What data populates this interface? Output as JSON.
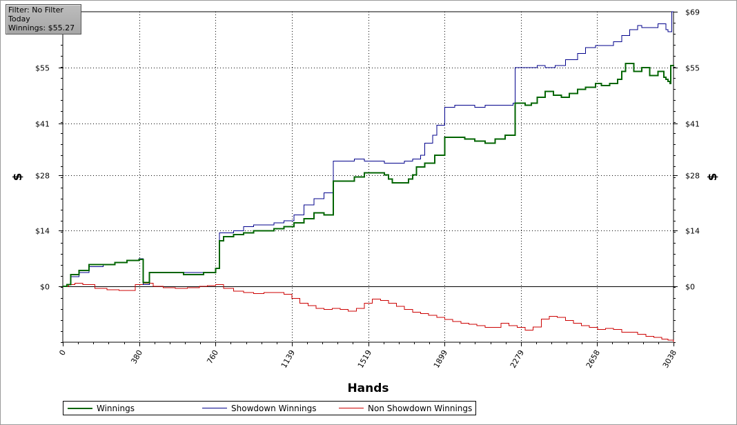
{
  "filter_box": {
    "line1": "Filter: No Filter",
    "line2": "Today",
    "line3": "Winnings: $55.27"
  },
  "chart_data": {
    "type": "line",
    "xlabel": "Hands",
    "ylabel": "$",
    "ylabel_right": "$",
    "xlim": [
      0,
      3038
    ],
    "ylim": [
      -14,
      69
    ],
    "x_ticks": [
      "0",
      "380",
      "760",
      "1139",
      "1519",
      "1899",
      "2279",
      "2658",
      "3038"
    ],
    "x_tick_values": [
      0,
      380,
      760,
      1139,
      1519,
      1899,
      2279,
      2658,
      3038
    ],
    "y_ticks": [
      "$0",
      "$14",
      "$28",
      "$41",
      "$55",
      "$69"
    ],
    "y_tick_values": [
      0,
      14,
      28,
      41,
      55,
      69
    ],
    "grid": true,
    "legend_position": "bottom",
    "series": [
      {
        "name": "Winnings",
        "color": "#006400",
        "x": [
          0,
          20,
          40,
          80,
          130,
          200,
          260,
          300,
          320,
          340,
          380,
          400,
          430,
          500,
          600,
          700,
          760,
          780,
          800,
          850,
          900,
          950,
          1000,
          1050,
          1100,
          1150,
          1200,
          1250,
          1300,
          1340,
          1345,
          1400,
          1450,
          1500,
          1550,
          1600,
          1620,
          1640,
          1680,
          1720,
          1740,
          1760,
          1800,
          1850,
          1900,
          1950,
          2000,
          2050,
          2100,
          2150,
          2200,
          2240,
          2250,
          2280,
          2300,
          2330,
          2360,
          2400,
          2440,
          2480,
          2520,
          2560,
          2600,
          2650,
          2680,
          2720,
          2760,
          2780,
          2800,
          2840,
          2880,
          2920,
          2960,
          2990,
          3000,
          3010,
          3020,
          3025,
          3038
        ],
        "y": [
          0,
          0.5,
          3,
          4,
          5.5,
          5.5,
          6,
          6,
          6.5,
          6.5,
          6.8,
          1,
          3.5,
          3.5,
          3,
          3.5,
          4.5,
          11.5,
          12.5,
          13,
          13.5,
          14,
          14,
          14.5,
          15,
          16,
          17,
          18.5,
          18,
          18,
          26.5,
          26.5,
          27.5,
          28.5,
          28.5,
          28,
          27,
          26,
          26,
          27,
          28,
          30,
          31,
          33,
          37.5,
          37.5,
          37,
          36.5,
          36,
          37,
          38,
          38,
          46,
          46,
          45.5,
          46,
          47.5,
          49,
          48,
          47.5,
          48.5,
          49.5,
          50,
          51,
          50.5,
          51,
          52,
          54,
          56,
          54,
          55,
          53,
          54,
          52.5,
          52,
          51.5,
          51,
          55.5,
          55.3
        ]
      },
      {
        "name": "Showdown Winnings",
        "color": "#00008b",
        "x": [
          0,
          20,
          40,
          80,
          130,
          200,
          260,
          300,
          320,
          380,
          400,
          430,
          500,
          600,
          700,
          760,
          780,
          850,
          900,
          950,
          1000,
          1050,
          1100,
          1150,
          1200,
          1250,
          1300,
          1340,
          1345,
          1400,
          1450,
          1500,
          1550,
          1600,
          1650,
          1700,
          1740,
          1780,
          1800,
          1840,
          1860,
          1900,
          1950,
          2000,
          2050,
          2100,
          2150,
          2200,
          2240,
          2250,
          2300,
          2360,
          2400,
          2450,
          2500,
          2560,
          2600,
          2650,
          2700,
          2740,
          2780,
          2820,
          2860,
          2880,
          2920,
          2960,
          3000,
          3010,
          3020,
          3030,
          3038
        ],
        "y": [
          0,
          0.5,
          2.5,
          3.5,
          5,
          5.5,
          6,
          6,
          6.5,
          7,
          0.5,
          3.5,
          3.5,
          3.5,
          3.5,
          4.5,
          13.5,
          14,
          15,
          15.5,
          15.5,
          16,
          16.5,
          18,
          20.5,
          22,
          23.5,
          23.5,
          31.5,
          31.5,
          32,
          31.5,
          31.5,
          31,
          31,
          31.5,
          32,
          33,
          36,
          38,
          40.5,
          45,
          45.5,
          45.5,
          45,
          45.5,
          45.5,
          45.5,
          46,
          55,
          55,
          55.5,
          55,
          55.5,
          57,
          58.5,
          60,
          60.5,
          60.5,
          61.5,
          63,
          64.5,
          65.5,
          65,
          65,
          66,
          64.5,
          64,
          64,
          69,
          69
        ]
      },
      {
        "name": "Non Showdown Winnings",
        "color": "#cc0000",
        "x": [
          0,
          30,
          60,
          100,
          160,
          220,
          280,
          320,
          360,
          400,
          450,
          500,
          560,
          620,
          680,
          720,
          760,
          800,
          850,
          900,
          950,
          1000,
          1050,
          1100,
          1139,
          1180,
          1220,
          1260,
          1300,
          1340,
          1380,
          1420,
          1460,
          1500,
          1540,
          1580,
          1620,
          1660,
          1700,
          1740,
          1780,
          1820,
          1860,
          1900,
          1940,
          1980,
          2020,
          2060,
          2100,
          2140,
          2180,
          2220,
          2260,
          2300,
          2340,
          2380,
          2420,
          2460,
          2500,
          2540,
          2580,
          2620,
          2660,
          2700,
          2740,
          2780,
          2820,
          2860,
          2900,
          2940,
          2980,
          3010,
          3038
        ],
        "y": [
          0,
          0.5,
          0.8,
          0.5,
          -0.5,
          -0.8,
          -1,
          -1,
          0.5,
          0.8,
          0,
          -0.3,
          -0.5,
          -0.3,
          0,
          0.2,
          0.5,
          -0.5,
          -1.2,
          -1.5,
          -1.8,
          -1.5,
          -1.5,
          -2,
          -3,
          -4.2,
          -4.8,
          -5.5,
          -5.8,
          -5.5,
          -5.8,
          -6.2,
          -5.5,
          -4.2,
          -3.2,
          -3.5,
          -4.2,
          -5,
          -5.8,
          -6.5,
          -6.8,
          -7.2,
          -7.8,
          -8.3,
          -8.8,
          -9.2,
          -9.5,
          -9.8,
          -10.3,
          -10.3,
          -9.2,
          -9.8,
          -10.3,
          -11,
          -10.2,
          -8.2,
          -7.5,
          -7.8,
          -8.5,
          -9.2,
          -9.8,
          -10.3,
          -10.8,
          -10.5,
          -10.8,
          -11.5,
          -11.5,
          -12,
          -12.5,
          -12.8,
          -13.2,
          -13.5,
          -14
        ]
      }
    ]
  }
}
